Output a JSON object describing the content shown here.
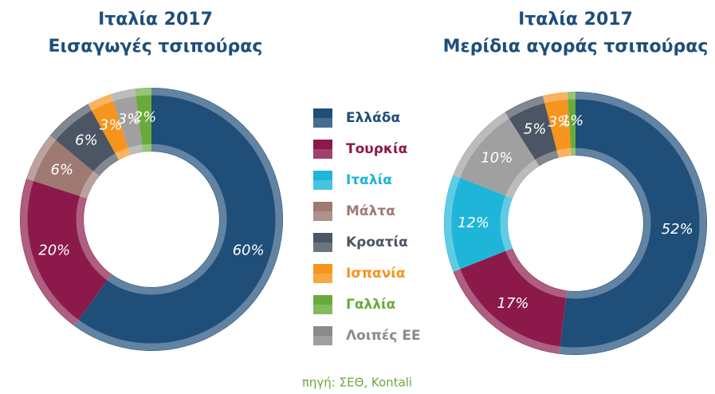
{
  "chart_data": [
    {
      "type": "pie",
      "title": "Ιταλία 2017",
      "subtitle": "Εισαγωγές τσιπούρας",
      "values": [
        60,
        20,
        6,
        6,
        3,
        3,
        2
      ],
      "value_labels": [
        "60%",
        "20%",
        "6%",
        "6%",
        "3%",
        "3%",
        "2%"
      ],
      "colors": [
        "#1f4e79",
        "#8b1a4a",
        "#9e7a72",
        "#4b5563",
        "#f7941d",
        "#a0a0a0",
        "#6aaa3a"
      ]
    },
    {
      "type": "pie",
      "title": "Ιταλία 2017",
      "subtitle": "Μερίδια αγοράς τσιπούρας",
      "values": [
        52,
        17,
        12,
        10,
        5,
        3,
        1
      ],
      "value_labels": [
        "52%",
        "17%",
        "12%",
        "10%",
        "5%",
        "3%",
        "1%"
      ],
      "colors": [
        "#1f4e79",
        "#8b1a4a",
        "#1fb5d8",
        "#a0a0a0",
        "#4b5563",
        "#f7941d",
        "#6aaa3a"
      ]
    }
  ],
  "legend": [
    {
      "name": "Ελλάδα",
      "color": "#1f4e79"
    },
    {
      "name": "Τουρκία",
      "color": "#8b1a4a"
    },
    {
      "name": "Ιταλία",
      "color": "#1fb5d8"
    },
    {
      "name": "Μάλτα",
      "color": "#9e7a72"
    },
    {
      "name": "Κροατία",
      "color": "#4b5563"
    },
    {
      "name": "Ισπανία",
      "color": "#f7941d"
    },
    {
      "name": "Γαλλία",
      "color": "#6aaa3a"
    },
    {
      "name": "Λοιπές ΕΕ",
      "color": "#8a8a8a"
    }
  ],
  "source": "πηγή: ΣΕΘ, Kontali"
}
